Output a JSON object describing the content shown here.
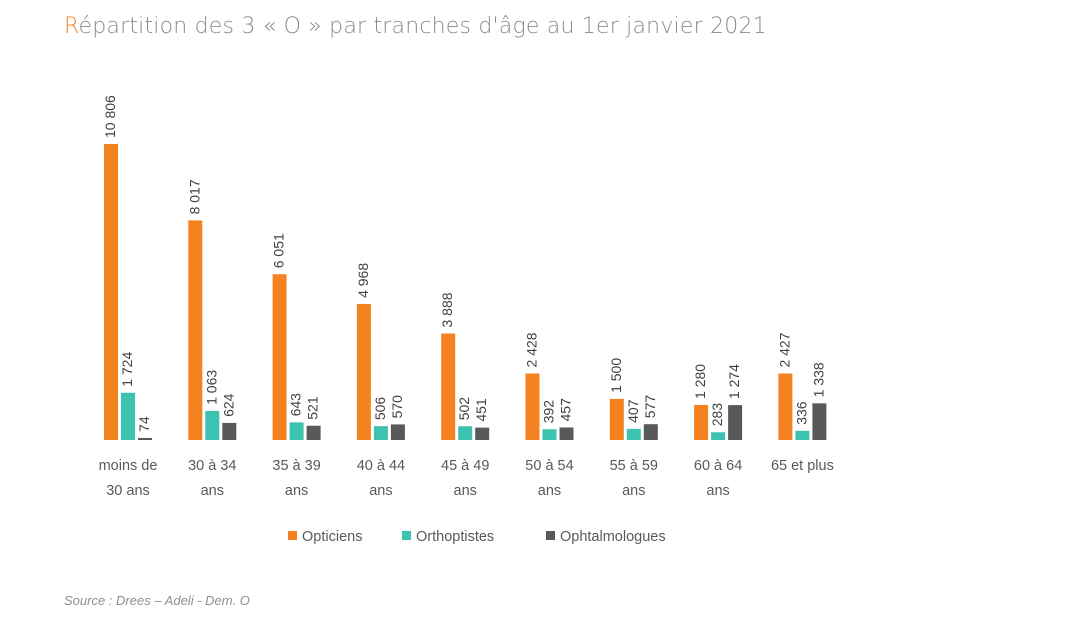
{
  "title_first": "R",
  "title_rest": "épartition des 3 « O » par tranches d'âge au 1er janvier 2021",
  "source": "Source : Drees – Adeli - Dem. O",
  "colors": {
    "title_accent": "#f58220",
    "opticiens": "#f58220",
    "orthoptistes": "#3cc3b0",
    "ophtalmologues": "#595959"
  },
  "chart_data": {
    "type": "bar",
    "categories": [
      [
        "moins de",
        "30 ans"
      ],
      [
        "30 à 34",
        "ans"
      ],
      [
        "35 à 39",
        "ans"
      ],
      [
        "40 à 44",
        "ans"
      ],
      [
        "45 à 49",
        "ans"
      ],
      [
        "50 à 54",
        "ans"
      ],
      [
        "55 à 59",
        "ans"
      ],
      [
        "60 à 64",
        "ans"
      ],
      [
        "65 et plus"
      ]
    ],
    "series": [
      {
        "name": "Opticiens",
        "values": [
          10806,
          8017,
          6051,
          4968,
          3888,
          2428,
          1500,
          1280,
          2427
        ],
        "labels": [
          "10 806",
          "8 017",
          "6 051",
          "4 968",
          "3 888",
          "2 428",
          "1 500",
          "1 280",
          "2 427"
        ]
      },
      {
        "name": "Orthoptistes",
        "values": [
          1724,
          1063,
          643,
          506,
          502,
          392,
          407,
          283,
          336
        ],
        "labels": [
          "1 724",
          "1 063",
          "643",
          "506",
          "502",
          "392",
          "407",
          "283",
          "336"
        ]
      },
      {
        "name": "Ophtalmologues",
        "values": [
          74,
          624,
          521,
          570,
          451,
          457,
          577,
          1274,
          1338
        ],
        "labels": [
          "74",
          "624",
          "521",
          "570",
          "451",
          "457",
          "577",
          "1 274",
          "1 338"
        ]
      }
    ],
    "ylim": [
      0,
      11000
    ],
    "grid": false,
    "legend_position": "bottom"
  }
}
